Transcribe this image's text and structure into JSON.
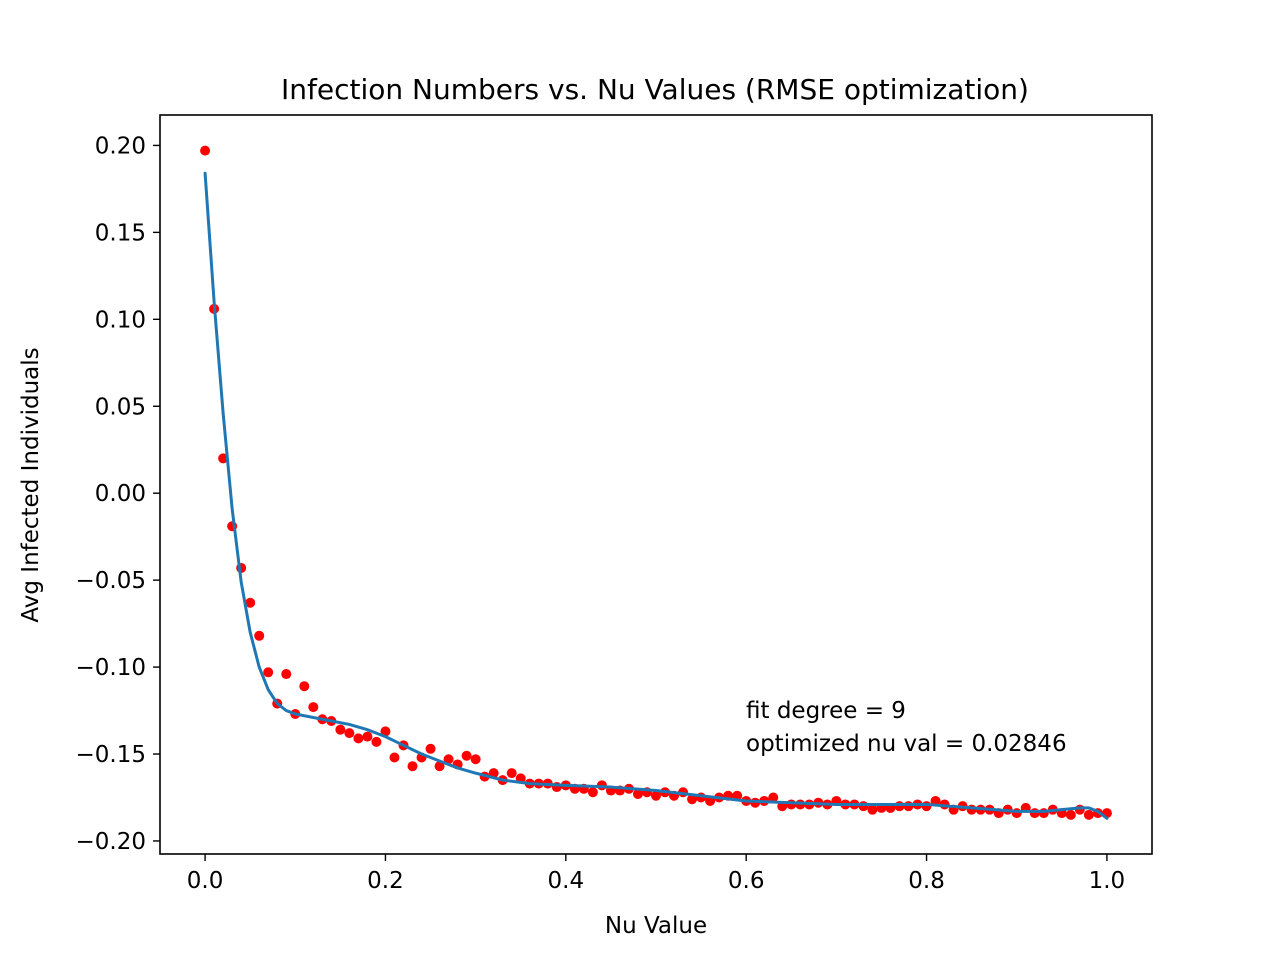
{
  "chart_data": {
    "type": "scatter",
    "title": "Infection Numbers vs. Nu Values (RMSE optimization)",
    "xlabel": "Nu Value",
    "ylabel": "Avg Infected Individuals",
    "xlim": [
      -0.05,
      1.05
    ],
    "ylim": [
      -0.2075,
      0.2175
    ],
    "xticks": [
      0.0,
      0.2,
      0.4,
      0.6,
      0.8,
      1.0
    ],
    "xtick_labels": [
      "0.0",
      "0.2",
      "0.4",
      "0.6",
      "0.8",
      "1.0"
    ],
    "yticks": [
      0.2,
      0.15,
      0.1,
      0.05,
      0.0,
      -0.05,
      -0.1,
      -0.15,
      -0.2
    ],
    "ytick_labels": [
      "0.20",
      "0.15",
      "0.10",
      "0.05",
      "0.00",
      "−0.05",
      "−0.10",
      "−0.15",
      "−0.20"
    ],
    "grid": false,
    "colors": {
      "points": "#ff0000",
      "fit": "#1f77b4"
    },
    "annotations": [
      "fit degree = 9",
      "optimized nu val = 0.02846"
    ],
    "series": [
      {
        "kind": "scatter",
        "x": [
          0.0,
          0.01,
          0.02,
          0.03,
          0.04,
          0.05,
          0.06,
          0.07,
          0.08,
          0.09,
          0.1,
          0.11,
          0.12,
          0.13,
          0.14,
          0.15,
          0.16,
          0.17,
          0.18,
          0.19,
          0.2,
          0.21,
          0.22,
          0.23,
          0.24,
          0.25,
          0.26,
          0.27,
          0.28,
          0.29,
          0.3,
          0.31,
          0.32,
          0.33,
          0.34,
          0.35,
          0.36,
          0.37,
          0.38,
          0.39,
          0.4,
          0.41,
          0.42,
          0.43,
          0.44,
          0.45,
          0.46,
          0.47,
          0.48,
          0.49,
          0.5,
          0.51,
          0.52,
          0.53,
          0.54,
          0.55,
          0.56,
          0.57,
          0.58,
          0.59,
          0.6,
          0.61,
          0.62,
          0.63,
          0.64,
          0.65,
          0.66,
          0.67,
          0.68,
          0.69,
          0.7,
          0.71,
          0.72,
          0.73,
          0.74,
          0.75,
          0.76,
          0.77,
          0.78,
          0.79,
          0.8,
          0.81,
          0.82,
          0.83,
          0.84,
          0.85,
          0.86,
          0.87,
          0.88,
          0.89,
          0.9,
          0.91,
          0.92,
          0.93,
          0.94,
          0.95,
          0.96,
          0.97,
          0.98,
          0.99,
          1.0
        ],
        "y": [
          0.197,
          0.106,
          0.02,
          -0.019,
          -0.043,
          -0.063,
          -0.082,
          -0.103,
          -0.121,
          -0.104,
          -0.127,
          -0.111,
          -0.123,
          -0.13,
          -0.131,
          -0.136,
          -0.138,
          -0.141,
          -0.14,
          -0.143,
          -0.137,
          -0.152,
          -0.145,
          -0.157,
          -0.152,
          -0.147,
          -0.157,
          -0.153,
          -0.156,
          -0.151,
          -0.153,
          -0.163,
          -0.161,
          -0.165,
          -0.161,
          -0.164,
          -0.167,
          -0.167,
          -0.167,
          -0.169,
          -0.168,
          -0.17,
          -0.17,
          -0.172,
          -0.168,
          -0.171,
          -0.171,
          -0.17,
          -0.173,
          -0.172,
          -0.174,
          -0.172,
          -0.174,
          -0.172,
          -0.176,
          -0.175,
          -0.177,
          -0.175,
          -0.174,
          -0.174,
          -0.177,
          -0.178,
          -0.177,
          -0.175,
          -0.18,
          -0.179,
          -0.179,
          -0.179,
          -0.178,
          -0.179,
          -0.177,
          -0.179,
          -0.179,
          -0.18,
          -0.182,
          -0.181,
          -0.181,
          -0.18,
          -0.18,
          -0.179,
          -0.18,
          -0.177,
          -0.179,
          -0.182,
          -0.18,
          -0.182,
          -0.182,
          -0.182,
          -0.184,
          -0.182,
          -0.184,
          -0.181,
          -0.184,
          -0.184,
          -0.182,
          -0.184,
          -0.185,
          -0.182,
          -0.185,
          -0.184,
          -0.184
        ]
      },
      {
        "kind": "line",
        "x": [
          0.0,
          0.01,
          0.02,
          0.03,
          0.04,
          0.05,
          0.06,
          0.07,
          0.08,
          0.09,
          0.1,
          0.12,
          0.14,
          0.16,
          0.18,
          0.2,
          0.22,
          0.24,
          0.26,
          0.28,
          0.3,
          0.33,
          0.36,
          0.4,
          0.45,
          0.5,
          0.55,
          0.6,
          0.65,
          0.7,
          0.75,
          0.8,
          0.85,
          0.9,
          0.93,
          0.95,
          0.97,
          0.98,
          0.99,
          1.0
        ],
        "y": [
          0.184,
          0.11,
          0.046,
          -0.009,
          -0.051,
          -0.08,
          -0.1,
          -0.113,
          -0.121,
          -0.125,
          -0.127,
          -0.129,
          -0.131,
          -0.133,
          -0.136,
          -0.14,
          -0.145,
          -0.15,
          -0.154,
          -0.158,
          -0.161,
          -0.165,
          -0.167,
          -0.168,
          -0.169,
          -0.171,
          -0.174,
          -0.177,
          -0.178,
          -0.179,
          -0.179,
          -0.179,
          -0.181,
          -0.183,
          -0.183,
          -0.182,
          -0.181,
          -0.181,
          -0.183,
          -0.187
        ]
      }
    ]
  }
}
